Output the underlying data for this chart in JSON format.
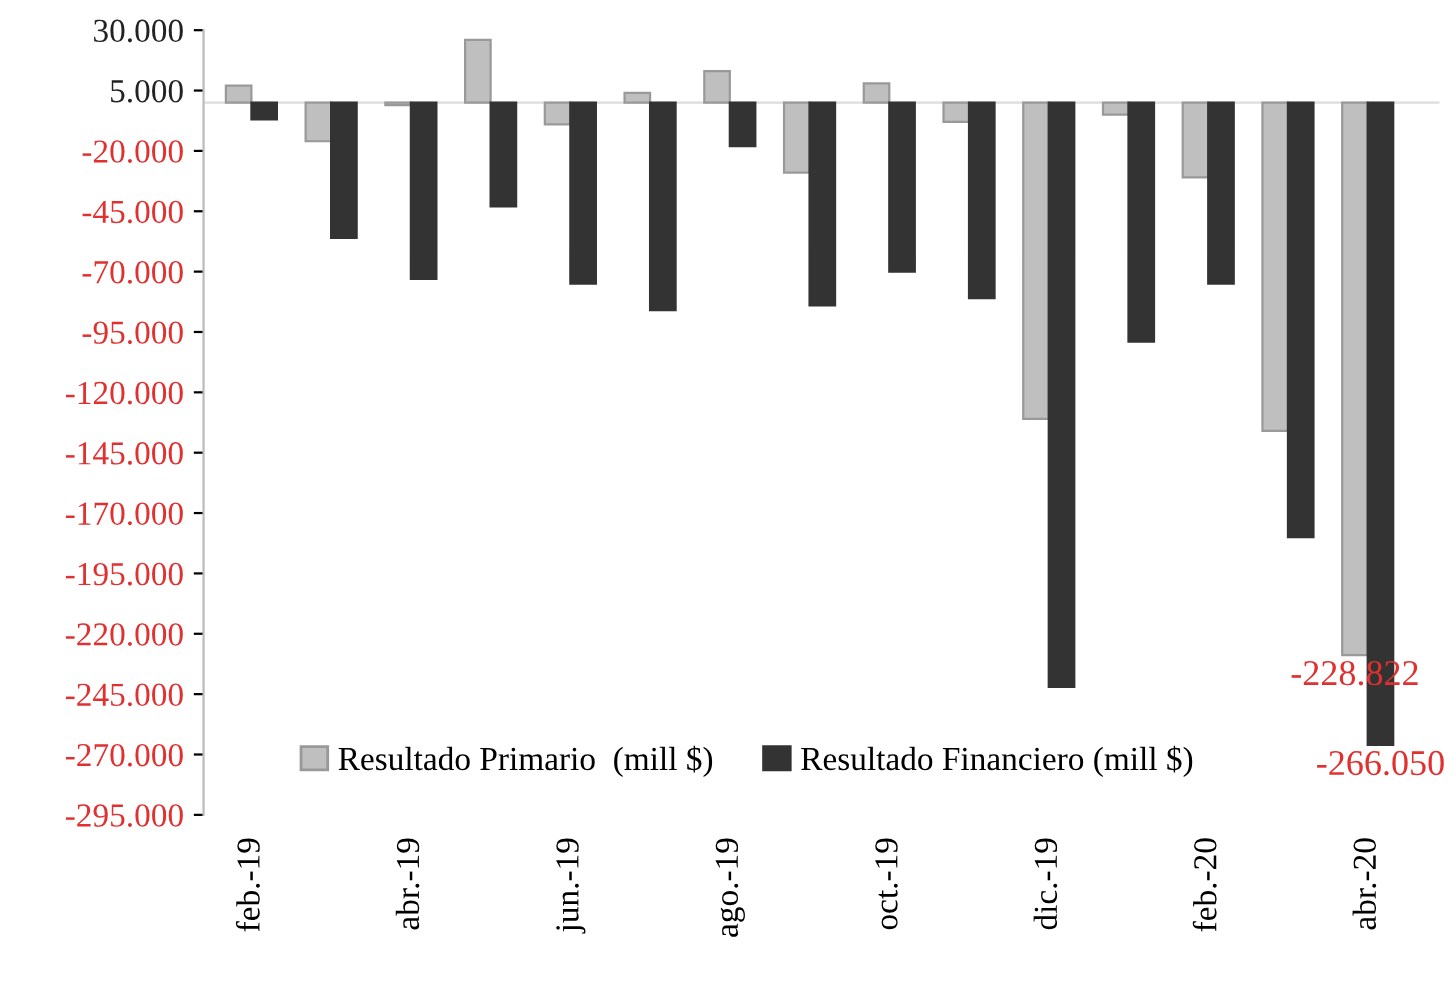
{
  "chart_data": {
    "type": "bar",
    "categories": [
      "feb.-19",
      null,
      "abr.-19",
      null,
      "jun.-19",
      null,
      "ago.-19",
      null,
      "oct.-19",
      null,
      "dic.-19",
      null,
      "feb.-20",
      null,
      "abr.-20"
    ],
    "series": [
      {
        "name": "Resultado Primario  (mill $)",
        "color": "#bfbfbf",
        "values": [
          7000,
          -16000,
          -1000,
          26000,
          -9000,
          4000,
          13000,
          -29000,
          8000,
          -8000,
          -131000,
          -5000,
          -31000,
          -136000,
          -228822
        ],
        "value_labels": [
          null,
          null,
          null,
          null,
          null,
          null,
          null,
          null,
          null,
          null,
          null,
          null,
          null,
          null,
          "-228.822"
        ]
      },
      {
        "name": "Resultado Financiero (mill $)",
        "color": "#333333",
        "values": [
          -7000,
          -56000,
          -73000,
          -43000,
          -75000,
          -86000,
          -18000,
          -84000,
          -70000,
          -81000,
          -242000,
          -99000,
          -75000,
          -180000,
          -266050
        ],
        "value_labels": [
          null,
          null,
          null,
          null,
          null,
          null,
          null,
          null,
          null,
          null,
          null,
          null,
          null,
          null,
          "-266.050"
        ]
      }
    ],
    "ylim": [
      -295000,
      30000
    ],
    "yticks": [
      {
        "value": 30000,
        "label": "30.000"
      },
      {
        "value": 5000,
        "label": "5.000"
      },
      {
        "value": -20000,
        "label": "-20.000"
      },
      {
        "value": -45000,
        "label": "-45.000"
      },
      {
        "value": -70000,
        "label": "-70.000"
      },
      {
        "value": -95000,
        "label": "-95.000"
      },
      {
        "value": -120000,
        "label": "-120.000"
      },
      {
        "value": -145000,
        "label": "-145.000"
      },
      {
        "value": -170000,
        "label": "-170.000"
      },
      {
        "value": -195000,
        "label": "-195.000"
      },
      {
        "value": -220000,
        "label": "-220.000"
      },
      {
        "value": -245000,
        "label": "-245.000"
      },
      {
        "value": -270000,
        "label": "-270.000"
      },
      {
        "value": -295000,
        "label": "-295.000"
      }
    ],
    "grid": false,
    "legend": "bottom"
  }
}
